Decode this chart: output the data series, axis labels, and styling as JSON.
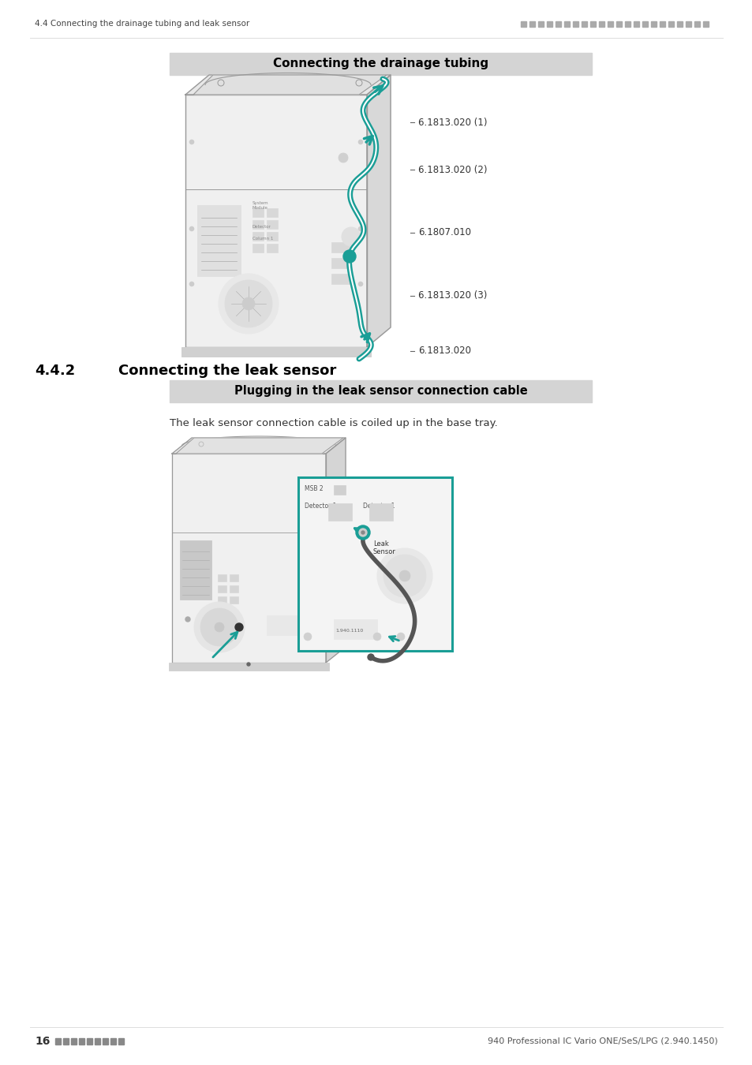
{
  "page_background": "#ffffff",
  "header_text_left": "4.4 Connecting the drainage tubing and leak sensor",
  "footer_page_num": "16",
  "footer_right_text": "940 Professional IC Vario ONE/SeS/LPG (2.940.1450)",
  "section_442_label": "4.4.2",
  "section_442_title": "Connecting the leak sensor",
  "box1_title": "Connecting the drainage tubing",
  "box2_title": "Plugging in the leak sensor connection cable",
  "box_bg_color": "#d4d4d4",
  "teal_color": "#1a9e96",
  "body_text": "The leak sensor connection cable is coiled up in the base tray.",
  "labels": [
    "6.1813.020 (1)",
    "6.1813.020 (2)",
    "6.1807.010",
    "6.1813.020 (3)",
    "6.1813.020"
  ],
  "device_outline_color": "#999999",
  "device_fill_color": "#f2f2f2",
  "device_dark_color": "#cccccc"
}
